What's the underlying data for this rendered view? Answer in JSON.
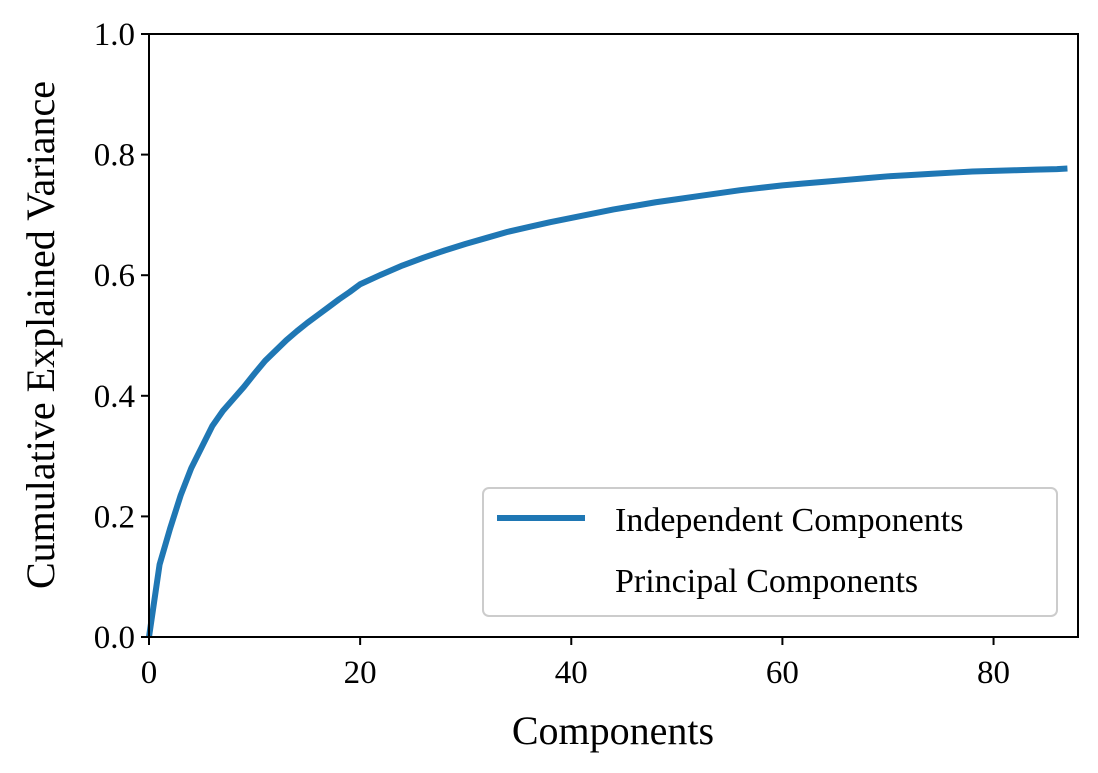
{
  "chart_data": {
    "type": "line",
    "title": "",
    "xlabel": "Components",
    "ylabel": "Cumulative Explained Variance",
    "xlim": [
      0,
      88
    ],
    "ylim": [
      0,
      1.0
    ],
    "x_ticks": [
      0,
      20,
      40,
      60,
      80
    ],
    "x_tick_labels": [
      "0",
      "20",
      "40",
      "60",
      "80"
    ],
    "y_ticks": [
      0.0,
      0.2,
      0.4,
      0.6,
      0.8,
      1.0
    ],
    "y_tick_labels": [
      "0.0",
      "0.2",
      "0.4",
      "0.6",
      "0.8",
      "1.0"
    ],
    "grid": false,
    "legend_position": "lower-right",
    "series": [
      {
        "name": "Independent Components",
        "color": "#1f77b4",
        "x": [
          0,
          1,
          2,
          3,
          4,
          5,
          6,
          7,
          8,
          9,
          10,
          11,
          12,
          13,
          14,
          15,
          16,
          17,
          18,
          19,
          20,
          22,
          24,
          26,
          28,
          30,
          32,
          34,
          36,
          38,
          40,
          42,
          44,
          46,
          48,
          50,
          52,
          54,
          56,
          58,
          60,
          62,
          64,
          66,
          68,
          70,
          72,
          74,
          76,
          78,
          80,
          82,
          84,
          86,
          87
        ],
        "values": [
          0.0,
          0.12,
          0.18,
          0.235,
          0.28,
          0.315,
          0.35,
          0.375,
          0.395,
          0.415,
          0.437,
          0.458,
          0.475,
          0.492,
          0.507,
          0.521,
          0.534,
          0.547,
          0.56,
          0.572,
          0.585,
          0.601,
          0.616,
          0.629,
          0.641,
          0.652,
          0.662,
          0.672,
          0.68,
          0.688,
          0.695,
          0.702,
          0.709,
          0.715,
          0.721,
          0.726,
          0.731,
          0.736,
          0.741,
          0.745,
          0.749,
          0.752,
          0.755,
          0.758,
          0.761,
          0.764,
          0.766,
          0.768,
          0.77,
          0.772,
          0.773,
          0.774,
          0.775,
          0.776,
          0.777
        ]
      },
      {
        "name": "Principal Components",
        "color": "#ffffff",
        "x": [],
        "values": []
      }
    ]
  }
}
